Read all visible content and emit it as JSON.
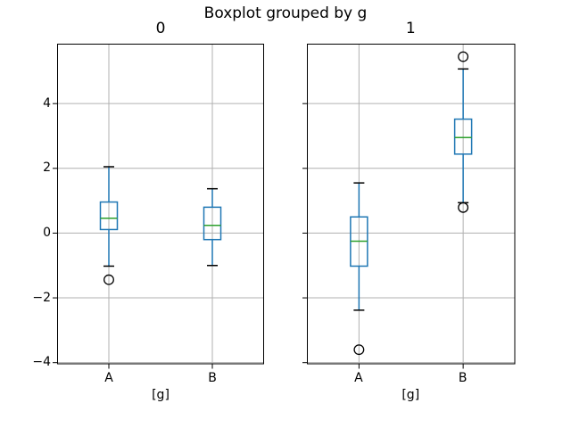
{
  "chart_data": {
    "type": "boxplot",
    "suptitle": "Boxplot grouped by g",
    "grid": true,
    "legend": "none",
    "ylim": [
      -4.05,
      5.85
    ],
    "yticks": [
      -4,
      -2,
      0,
      2,
      4
    ],
    "xlim": [
      0.5,
      2.5
    ],
    "subplots": [
      {
        "title": "0",
        "xlabel": "[g]",
        "categories": [
          "A",
          "B"
        ],
        "show_ytick_labels": true,
        "boxes": [
          {
            "category": "A",
            "whislo": -1.02,
            "q1": 0.11,
            "med": 0.46,
            "q3": 0.96,
            "whishi": 2.05,
            "fliers": [
              -1.44
            ]
          },
          {
            "category": "B",
            "whislo": -1.0,
            "q1": -0.2,
            "med": 0.24,
            "q3": 0.8,
            "whishi": 1.37,
            "fliers": []
          }
        ]
      },
      {
        "title": "1",
        "xlabel": "[g]",
        "categories": [
          "A",
          "B"
        ],
        "show_ytick_labels": false,
        "boxes": [
          {
            "category": "A",
            "whislo": -2.38,
            "q1": -1.02,
            "med": -0.25,
            "q3": 0.5,
            "whishi": 1.55,
            "fliers": [
              -3.6
            ]
          },
          {
            "category": "B",
            "whislo": 0.94,
            "q1": 2.44,
            "med": 2.95,
            "q3": 3.52,
            "whishi": 5.07,
            "fliers": [
              0.79,
              5.45
            ]
          }
        ]
      }
    ],
    "colors": {
      "box": "#1f77b4",
      "whisker": "#1f77b4",
      "median": "#2ca02c",
      "cap": "#000000",
      "flier_edge": "#000000",
      "grid": "#b0b0b0",
      "spine": "#000000",
      "text": "#000000"
    }
  }
}
